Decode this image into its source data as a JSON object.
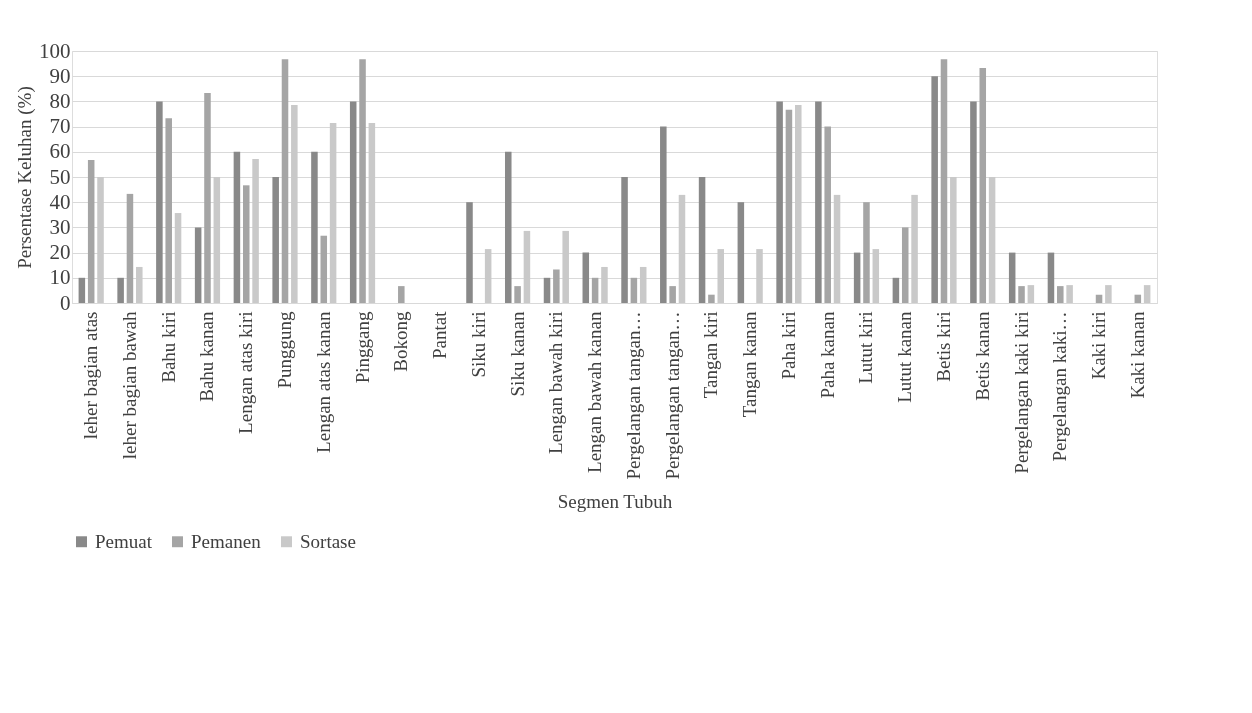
{
  "chart_data": {
    "type": "bar",
    "xlabel": "Segmen Tubuh",
    "ylabel": "Persentase Keluhan (%)",
    "categories": [
      "leher bagian atas",
      "leher bagian bawah",
      "Bahu kiri",
      "Bahu kanan",
      "Lengan atas kiri",
      "Punggung",
      "Lengan atas kanan",
      "Pinggang",
      "Bokong",
      "Pantat",
      "Siku kiri",
      "Siku kanan",
      "Lengan bawah kiri",
      "Lengan bawah kanan",
      "Pergelangan tangan…",
      "Pergelangan tangan…",
      "Tangan kiri",
      "Tangan kanan",
      "Paha kiri",
      "Paha kanan",
      "Lutut kiri",
      "Lutut kanan",
      "Betis kiri",
      "Betis kanan",
      "Pergelangan kaki kiri",
      "Pergelangan kaki…",
      "Kaki kiri",
      "Kaki kanan"
    ],
    "series": [
      {
        "name": "Pemuat",
        "color": "#898989",
        "values": [
          10,
          10,
          80,
          30,
          60,
          50,
          60,
          80,
          0,
          0,
          40,
          60,
          10,
          20,
          50,
          70,
          50,
          40,
          80,
          80,
          20,
          10,
          90,
          80,
          20,
          20,
          0,
          0
        ]
      },
      {
        "name": "Pemanen",
        "color": "#a5a5a5",
        "values": [
          56.7,
          43.3,
          73.3,
          83.3,
          46.7,
          96.7,
          26.7,
          96.7,
          6.7,
          0,
          0,
          6.7,
          13.3,
          10,
          10,
          6.7,
          3.3,
          0,
          76.7,
          70,
          40,
          30,
          96.7,
          93.3,
          6.7,
          6.7,
          3.3,
          3.3
        ]
      },
      {
        "name": "Sortase",
        "color": "#c9c9c9",
        "values": [
          50,
          14.3,
          35.7,
          50,
          57.1,
          78.6,
          71.4,
          71.4,
          0,
          0,
          21.4,
          28.6,
          28.6,
          14.3,
          14.3,
          42.9,
          21.4,
          21.4,
          78.6,
          42.9,
          21.4,
          42.9,
          50,
          50,
          7.1,
          7.1,
          7.1,
          7.1
        ]
      }
    ],
    "ylim": [
      0,
      100
    ],
    "yticks": [
      0,
      10,
      20,
      30,
      40,
      50,
      60,
      70,
      80,
      90,
      100
    ],
    "grid": "y",
    "legend": "bottom"
  }
}
